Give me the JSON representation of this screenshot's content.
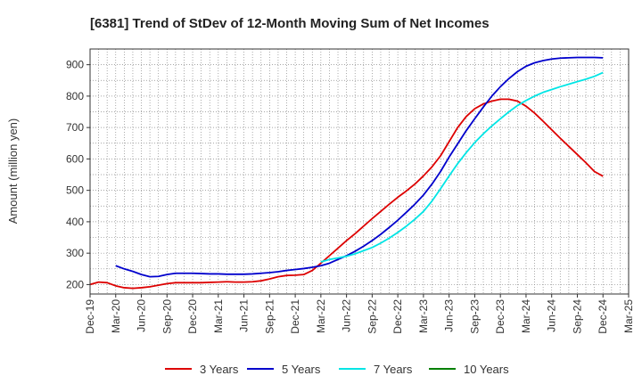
{
  "chart_data": {
    "type": "line",
    "title": "[6381]  Trend of StDev of 12-Month Moving Sum of Net Incomes",
    "xlabel": "",
    "ylabel": "Amount (million yen)",
    "ylim": [
      170,
      950
    ],
    "yticks": [
      200,
      300,
      400,
      500,
      600,
      700,
      800,
      900
    ],
    "xlim": [
      "2019-12",
      "2025-03"
    ],
    "xticks": [
      "Dec-19",
      "Mar-20",
      "Jun-20",
      "Sep-20",
      "Dec-20",
      "Mar-21",
      "Jun-21",
      "Sep-21",
      "Dec-21",
      "Mar-22",
      "Jun-22",
      "Sep-22",
      "Dec-22",
      "Mar-23",
      "Jun-23",
      "Sep-23",
      "Dec-23",
      "Mar-24",
      "Jun-24",
      "Sep-24",
      "Dec-24",
      "Mar-25"
    ],
    "grid": true,
    "legend_position": "bottom",
    "series": [
      {
        "name": "3 Years",
        "color": "#dd0000",
        "points": [
          [
            "2019-12",
            200
          ],
          [
            "2020-01",
            208
          ],
          [
            "2020-02",
            206
          ],
          [
            "2020-03",
            196
          ],
          [
            "2020-04",
            190
          ],
          [
            "2020-05",
            188
          ],
          [
            "2020-06",
            190
          ],
          [
            "2020-07",
            193
          ],
          [
            "2020-08",
            198
          ],
          [
            "2020-09",
            203
          ],
          [
            "2020-10",
            206
          ],
          [
            "2020-11",
            206
          ],
          [
            "2020-12",
            206
          ],
          [
            "2021-01",
            206
          ],
          [
            "2021-02",
            207
          ],
          [
            "2021-03",
            208
          ],
          [
            "2021-04",
            209
          ],
          [
            "2021-05",
            208
          ],
          [
            "2021-06",
            208
          ],
          [
            "2021-07",
            209
          ],
          [
            "2021-08",
            212
          ],
          [
            "2021-09",
            218
          ],
          [
            "2021-10",
            225
          ],
          [
            "2021-11",
            229
          ],
          [
            "2021-12",
            230
          ],
          [
            "2022-01",
            232
          ],
          [
            "2022-02",
            245
          ],
          [
            "2022-03",
            268
          ],
          [
            "2022-04",
            292
          ],
          [
            "2022-05",
            316
          ],
          [
            "2022-06",
            340
          ],
          [
            "2022-07",
            362
          ],
          [
            "2022-08",
            386
          ],
          [
            "2022-09",
            410
          ],
          [
            "2022-10",
            433
          ],
          [
            "2022-11",
            456
          ],
          [
            "2022-12",
            478
          ],
          [
            "2023-01",
            498
          ],
          [
            "2023-02",
            520
          ],
          [
            "2023-03",
            546
          ],
          [
            "2023-04",
            575
          ],
          [
            "2023-05",
            610
          ],
          [
            "2023-06",
            655
          ],
          [
            "2023-07",
            700
          ],
          [
            "2023-08",
            735
          ],
          [
            "2023-09",
            760
          ],
          [
            "2023-10",
            775
          ],
          [
            "2023-11",
            784
          ],
          [
            "2023-12",
            790
          ],
          [
            "2024-01",
            790
          ],
          [
            "2024-02",
            784
          ],
          [
            "2024-03",
            768
          ],
          [
            "2024-04",
            746
          ],
          [
            "2024-05",
            720
          ],
          [
            "2024-06",
            693
          ],
          [
            "2024-07",
            666
          ],
          [
            "2024-08",
            640
          ],
          [
            "2024-09",
            614
          ],
          [
            "2024-10",
            588
          ],
          [
            "2024-11",
            560
          ],
          [
            "2024-12",
            545
          ]
        ]
      },
      {
        "name": "5 Years",
        "color": "#0000cc",
        "points": [
          [
            "2020-03",
            260
          ],
          [
            "2020-04",
            250
          ],
          [
            "2020-05",
            242
          ],
          [
            "2020-06",
            232
          ],
          [
            "2020-07",
            225
          ],
          [
            "2020-08",
            226
          ],
          [
            "2020-09",
            232
          ],
          [
            "2020-10",
            236
          ],
          [
            "2020-11",
            236
          ],
          [
            "2020-12",
            236
          ],
          [
            "2021-01",
            235
          ],
          [
            "2021-02",
            234
          ],
          [
            "2021-03",
            234
          ],
          [
            "2021-04",
            233
          ],
          [
            "2021-05",
            233
          ],
          [
            "2021-06",
            233
          ],
          [
            "2021-07",
            234
          ],
          [
            "2021-08",
            236
          ],
          [
            "2021-09",
            238
          ],
          [
            "2021-10",
            241
          ],
          [
            "2021-11",
            245
          ],
          [
            "2021-12",
            248
          ],
          [
            "2022-01",
            251
          ],
          [
            "2022-02",
            255
          ],
          [
            "2022-03",
            260
          ],
          [
            "2022-04",
            268
          ],
          [
            "2022-05",
            280
          ],
          [
            "2022-06",
            292
          ],
          [
            "2022-07",
            306
          ],
          [
            "2022-08",
            322
          ],
          [
            "2022-09",
            340
          ],
          [
            "2022-10",
            360
          ],
          [
            "2022-11",
            382
          ],
          [
            "2022-12",
            405
          ],
          [
            "2023-01",
            430
          ],
          [
            "2023-02",
            456
          ],
          [
            "2023-03",
            485
          ],
          [
            "2023-04",
            520
          ],
          [
            "2023-05",
            560
          ],
          [
            "2023-06",
            606
          ],
          [
            "2023-07",
            648
          ],
          [
            "2023-08",
            690
          ],
          [
            "2023-09",
            728
          ],
          [
            "2023-10",
            765
          ],
          [
            "2023-11",
            800
          ],
          [
            "2023-12",
            830
          ],
          [
            "2024-01",
            856
          ],
          [
            "2024-02",
            878
          ],
          [
            "2024-03",
            895
          ],
          [
            "2024-04",
            906
          ],
          [
            "2024-05",
            913
          ],
          [
            "2024-06",
            918
          ],
          [
            "2024-07",
            921
          ],
          [
            "2024-08",
            922
          ],
          [
            "2024-09",
            923
          ],
          [
            "2024-10",
            923
          ],
          [
            "2024-11",
            923
          ],
          [
            "2024-12",
            922
          ]
        ]
      },
      {
        "name": "7 Years",
        "color": "#00e5e5",
        "points": [
          [
            "2022-03",
            272
          ],
          [
            "2022-04",
            280
          ],
          [
            "2022-05",
            285
          ],
          [
            "2022-06",
            290
          ],
          [
            "2022-07",
            298
          ],
          [
            "2022-08",
            308
          ],
          [
            "2022-09",
            318
          ],
          [
            "2022-10",
            332
          ],
          [
            "2022-11",
            348
          ],
          [
            "2022-12",
            366
          ],
          [
            "2023-01",
            386
          ],
          [
            "2023-02",
            408
          ],
          [
            "2023-03",
            433
          ],
          [
            "2023-04",
            466
          ],
          [
            "2023-05",
            505
          ],
          [
            "2023-06",
            546
          ],
          [
            "2023-07",
            585
          ],
          [
            "2023-08",
            620
          ],
          [
            "2023-09",
            652
          ],
          [
            "2023-10",
            680
          ],
          [
            "2023-11",
            705
          ],
          [
            "2023-12",
            728
          ],
          [
            "2024-01",
            750
          ],
          [
            "2024-02",
            770
          ],
          [
            "2024-03",
            786
          ],
          [
            "2024-04",
            800
          ],
          [
            "2024-05",
            812
          ],
          [
            "2024-06",
            821
          ],
          [
            "2024-07",
            830
          ],
          [
            "2024-08",
            838
          ],
          [
            "2024-09",
            846
          ],
          [
            "2024-10",
            854
          ],
          [
            "2024-11",
            863
          ],
          [
            "2024-12",
            875
          ]
        ]
      },
      {
        "name": "10 Years",
        "color": "#008000",
        "points": []
      }
    ]
  }
}
